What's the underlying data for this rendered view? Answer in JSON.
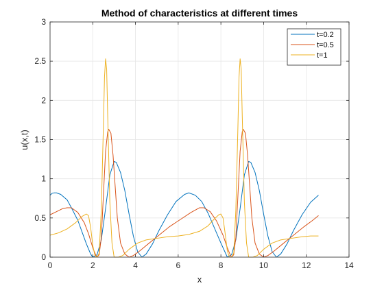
{
  "chart_data": {
    "type": "line",
    "title": "Method of characteristics at different times",
    "xlabel": "x",
    "ylabel": "u(x,t)",
    "xlim": [
      0,
      14
    ],
    "ylim": [
      0,
      3
    ],
    "xticks": [
      0,
      2,
      4,
      6,
      8,
      10,
      12,
      14
    ],
    "yticks": [
      0,
      0.5,
      1,
      1.5,
      2,
      2.5,
      3
    ],
    "xtick_labels": [
      "0",
      "2",
      "4",
      "6",
      "8",
      "10",
      "12",
      "14"
    ],
    "ytick_labels": [
      "0",
      "0.5",
      "1",
      "1.5",
      "2",
      "2.5",
      "3"
    ],
    "grid": true,
    "legend_position": "top-right",
    "series": [
      {
        "name": "t=0.2",
        "color": "#0072BD",
        "points": [
          [
            0,
            0.79
          ],
          [
            0.1,
            0.815
          ],
          [
            0.2,
            0.82
          ],
          [
            0.3,
            0.82
          ],
          [
            0.5,
            0.8
          ],
          [
            0.8,
            0.73
          ],
          [
            1.0,
            0.63
          ],
          [
            1.3,
            0.47
          ],
          [
            1.5,
            0.32
          ],
          [
            1.7,
            0.17
          ],
          [
            1.9,
            0.04
          ],
          [
            2.0,
            0.0
          ],
          [
            2.2,
            0.03
          ],
          [
            2.4,
            0.22
          ],
          [
            2.6,
            0.62
          ],
          [
            2.8,
            1.05
          ],
          [
            3.0,
            1.22
          ],
          [
            3.1,
            1.21
          ],
          [
            3.3,
            1.08
          ],
          [
            3.5,
            0.85
          ],
          [
            3.7,
            0.55
          ],
          [
            3.9,
            0.27
          ],
          [
            4.1,
            0.07
          ],
          [
            4.3,
            0.0
          ],
          [
            4.5,
            0.04
          ],
          [
            4.8,
            0.17
          ],
          [
            5.1,
            0.34
          ],
          [
            5.5,
            0.54
          ],
          [
            5.9,
            0.71
          ],
          [
            6.3,
            0.8
          ],
          [
            6.5,
            0.82
          ],
          [
            6.8,
            0.79
          ],
          [
            7.1,
            0.71
          ],
          [
            7.4,
            0.56
          ],
          [
            7.7,
            0.37
          ],
          [
            8.0,
            0.18
          ],
          [
            8.2,
            0.06
          ],
          [
            8.3,
            0.0
          ],
          [
            8.5,
            0.03
          ],
          [
            8.7,
            0.22
          ],
          [
            8.9,
            0.62
          ],
          [
            9.1,
            1.05
          ],
          [
            9.3,
            1.22
          ],
          [
            9.4,
            1.21
          ],
          [
            9.6,
            1.08
          ],
          [
            9.8,
            0.85
          ],
          [
            10.0,
            0.55
          ],
          [
            10.2,
            0.27
          ],
          [
            10.4,
            0.07
          ],
          [
            10.6,
            0.0
          ],
          [
            10.8,
            0.04
          ],
          [
            11.1,
            0.17
          ],
          [
            11.4,
            0.34
          ],
          [
            11.8,
            0.54
          ],
          [
            12.2,
            0.7
          ],
          [
            12.57,
            0.79
          ]
        ]
      },
      {
        "name": "t=0.5",
        "color": "#D95319",
        "points": [
          [
            0,
            0.54
          ],
          [
            0.3,
            0.58
          ],
          [
            0.6,
            0.62
          ],
          [
            0.8,
            0.63
          ],
          [
            1.0,
            0.63
          ],
          [
            1.3,
            0.57
          ],
          [
            1.6,
            0.44
          ],
          [
            1.8,
            0.3
          ],
          [
            2.0,
            0.12
          ],
          [
            2.15,
            0.02
          ],
          [
            2.2,
            0.0
          ],
          [
            2.3,
            0.03
          ],
          [
            2.4,
            0.25
          ],
          [
            2.5,
            0.8
          ],
          [
            2.6,
            1.35
          ],
          [
            2.7,
            1.6
          ],
          [
            2.75,
            1.63
          ],
          [
            2.85,
            1.58
          ],
          [
            2.95,
            1.3
          ],
          [
            3.05,
            0.9
          ],
          [
            3.15,
            0.5
          ],
          [
            3.3,
            0.18
          ],
          [
            3.5,
            0.04
          ],
          [
            3.7,
            0.0
          ],
          [
            3.9,
            0.02
          ],
          [
            4.2,
            0.08
          ],
          [
            4.6,
            0.17
          ],
          [
            5.1,
            0.28
          ],
          [
            5.6,
            0.39
          ],
          [
            6.1,
            0.48
          ],
          [
            6.6,
            0.57
          ],
          [
            7.0,
            0.63
          ],
          [
            7.2,
            0.63
          ],
          [
            7.5,
            0.58
          ],
          [
            7.8,
            0.46
          ],
          [
            8.1,
            0.28
          ],
          [
            8.3,
            0.12
          ],
          [
            8.45,
            0.02
          ],
          [
            8.5,
            0.0
          ],
          [
            8.6,
            0.03
          ],
          [
            8.7,
            0.25
          ],
          [
            8.8,
            0.8
          ],
          [
            8.9,
            1.35
          ],
          [
            9.0,
            1.6
          ],
          [
            9.05,
            1.63
          ],
          [
            9.15,
            1.58
          ],
          [
            9.25,
            1.3
          ],
          [
            9.35,
            0.9
          ],
          [
            9.45,
            0.5
          ],
          [
            9.6,
            0.18
          ],
          [
            9.8,
            0.04
          ],
          [
            10.0,
            0.0
          ],
          [
            10.2,
            0.02
          ],
          [
            10.5,
            0.08
          ],
          [
            10.9,
            0.17
          ],
          [
            11.4,
            0.28
          ],
          [
            11.9,
            0.39
          ],
          [
            12.3,
            0.47
          ],
          [
            12.57,
            0.53
          ]
        ]
      },
      {
        "name": "t=1",
        "color": "#EDB120",
        "points": [
          [
            0,
            0.28
          ],
          [
            0.4,
            0.31
          ],
          [
            0.8,
            0.36
          ],
          [
            1.2,
            0.44
          ],
          [
            1.5,
            0.52
          ],
          [
            1.7,
            0.55
          ],
          [
            1.8,
            0.53
          ],
          [
            1.9,
            0.38
          ],
          [
            2.0,
            0.15
          ],
          [
            2.1,
            0.02
          ],
          [
            2.2,
            0.0
          ],
          [
            2.3,
            0.05
          ],
          [
            2.4,
            0.6
          ],
          [
            2.5,
            1.7
          ],
          [
            2.55,
            2.3
          ],
          [
            2.6,
            2.53
          ],
          [
            2.65,
            2.4
          ],
          [
            2.7,
            1.8
          ],
          [
            2.8,
            0.7
          ],
          [
            2.9,
            0.18
          ],
          [
            3.0,
            0.0
          ],
          [
            3.2,
            0.0
          ],
          [
            3.4,
            0.02
          ],
          [
            3.7,
            0.1
          ],
          [
            4.1,
            0.18
          ],
          [
            4.5,
            0.22
          ],
          [
            5.0,
            0.24
          ],
          [
            5.5,
            0.26
          ],
          [
            6.0,
            0.27
          ],
          [
            6.5,
            0.29
          ],
          [
            7.0,
            0.33
          ],
          [
            7.4,
            0.4
          ],
          [
            7.7,
            0.49
          ],
          [
            7.9,
            0.54
          ],
          [
            8.0,
            0.55
          ],
          [
            8.1,
            0.5
          ],
          [
            8.2,
            0.3
          ],
          [
            8.3,
            0.08
          ],
          [
            8.4,
            0.0
          ],
          [
            8.5,
            0.0
          ],
          [
            8.6,
            0.05
          ],
          [
            8.7,
            0.6
          ],
          [
            8.8,
            1.7
          ],
          [
            8.85,
            2.3
          ],
          [
            8.9,
            2.53
          ],
          [
            8.95,
            2.4
          ],
          [
            9.0,
            1.8
          ],
          [
            9.1,
            0.7
          ],
          [
            9.2,
            0.18
          ],
          [
            9.3,
            0.0
          ],
          [
            9.5,
            0.0
          ],
          [
            9.7,
            0.02
          ],
          [
            10.0,
            0.1
          ],
          [
            10.4,
            0.18
          ],
          [
            10.8,
            0.22
          ],
          [
            11.3,
            0.24
          ],
          [
            11.8,
            0.26
          ],
          [
            12.2,
            0.27
          ],
          [
            12.57,
            0.27
          ]
        ]
      }
    ]
  }
}
